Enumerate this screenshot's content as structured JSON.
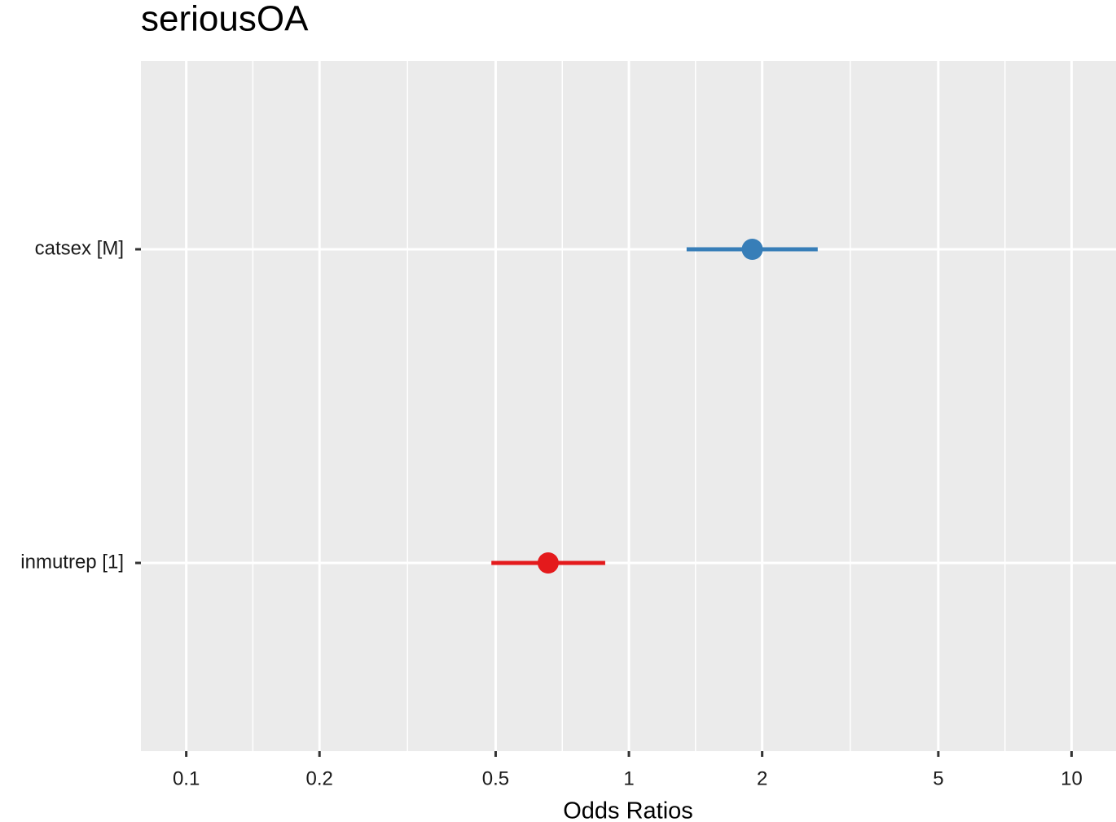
{
  "chart_data": {
    "type": "forest",
    "title": "seriousOA",
    "x_label": "Odds Ratios",
    "categories": [
      "catsex [M]",
      "inmutrep [1]"
    ],
    "values": [
      1.9,
      0.657
    ],
    "ci_low": [
      1.35,
      0.489
    ],
    "ci_high": [
      2.67,
      0.884
    ],
    "colors": [
      "#377eb8",
      "#e41a1c"
    ],
    "x_log": true,
    "xlim": [
      0.079,
      12.6
    ],
    "xticks": [
      0.1,
      0.2,
      0.5,
      1,
      2,
      5,
      10
    ],
    "grid": true
  }
}
